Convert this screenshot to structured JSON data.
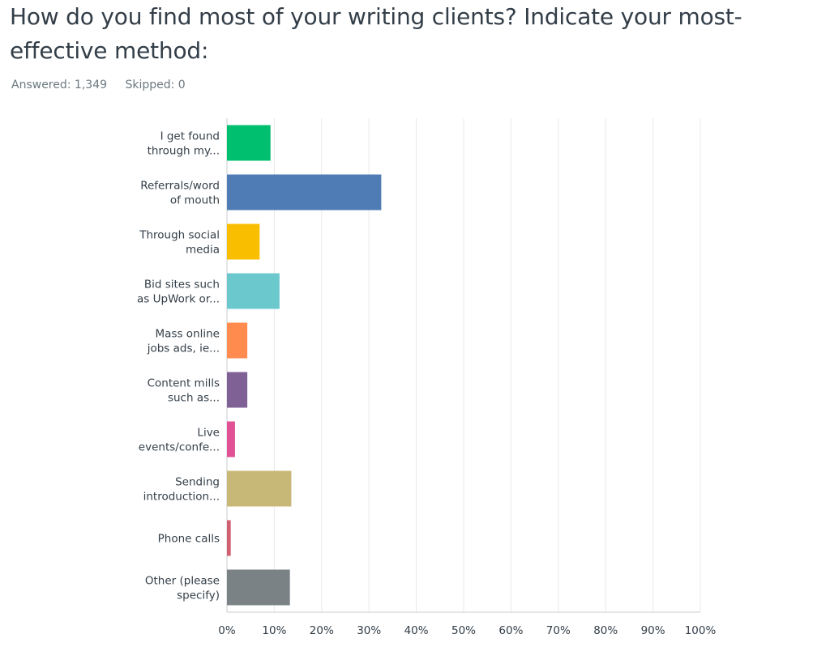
{
  "question": {
    "title": "How do you find most of your writing clients? Indicate your most-effective method:",
    "answered_label": "Answered: 1,349",
    "skipped_label": "Skipped: 0"
  },
  "chart_data": {
    "type": "bar",
    "orientation": "horizontal",
    "title": "How do you find most of your writing clients? Indicate your most-effective method:",
    "xlabel": "",
    "ylabel": "",
    "xlim": [
      0,
      100
    ],
    "grid": true,
    "legend": "none",
    "ticks": [
      "0%",
      "10%",
      "20%",
      "30%",
      "40%",
      "50%",
      "60%",
      "70%",
      "80%",
      "90%",
      "100%"
    ],
    "categories": [
      [
        "I get found",
        "through my..."
      ],
      [
        "Referrals/word",
        "of mouth"
      ],
      [
        "Through social",
        "media"
      ],
      [
        "Bid sites such",
        "as UpWork or..."
      ],
      [
        "Mass online",
        "jobs ads, ie..."
      ],
      [
        "Content mills",
        "such as..."
      ],
      [
        "Live",
        "events/confe..."
      ],
      [
        "Sending",
        "introduction..."
      ],
      [
        "Phone calls"
      ],
      [
        "Other (please",
        "specify)"
      ]
    ],
    "values": [
      9.2,
      32.6,
      6.9,
      11.1,
      4.3,
      4.3,
      1.7,
      13.6,
      0.8,
      13.3
    ],
    "colors": [
      "#00bf6f",
      "#507cb6",
      "#f9be00",
      "#6bc8cd",
      "#ff8b4f",
      "#7f6195",
      "#e05195",
      "#c8b877",
      "#d25f70",
      "#7a8285"
    ]
  }
}
